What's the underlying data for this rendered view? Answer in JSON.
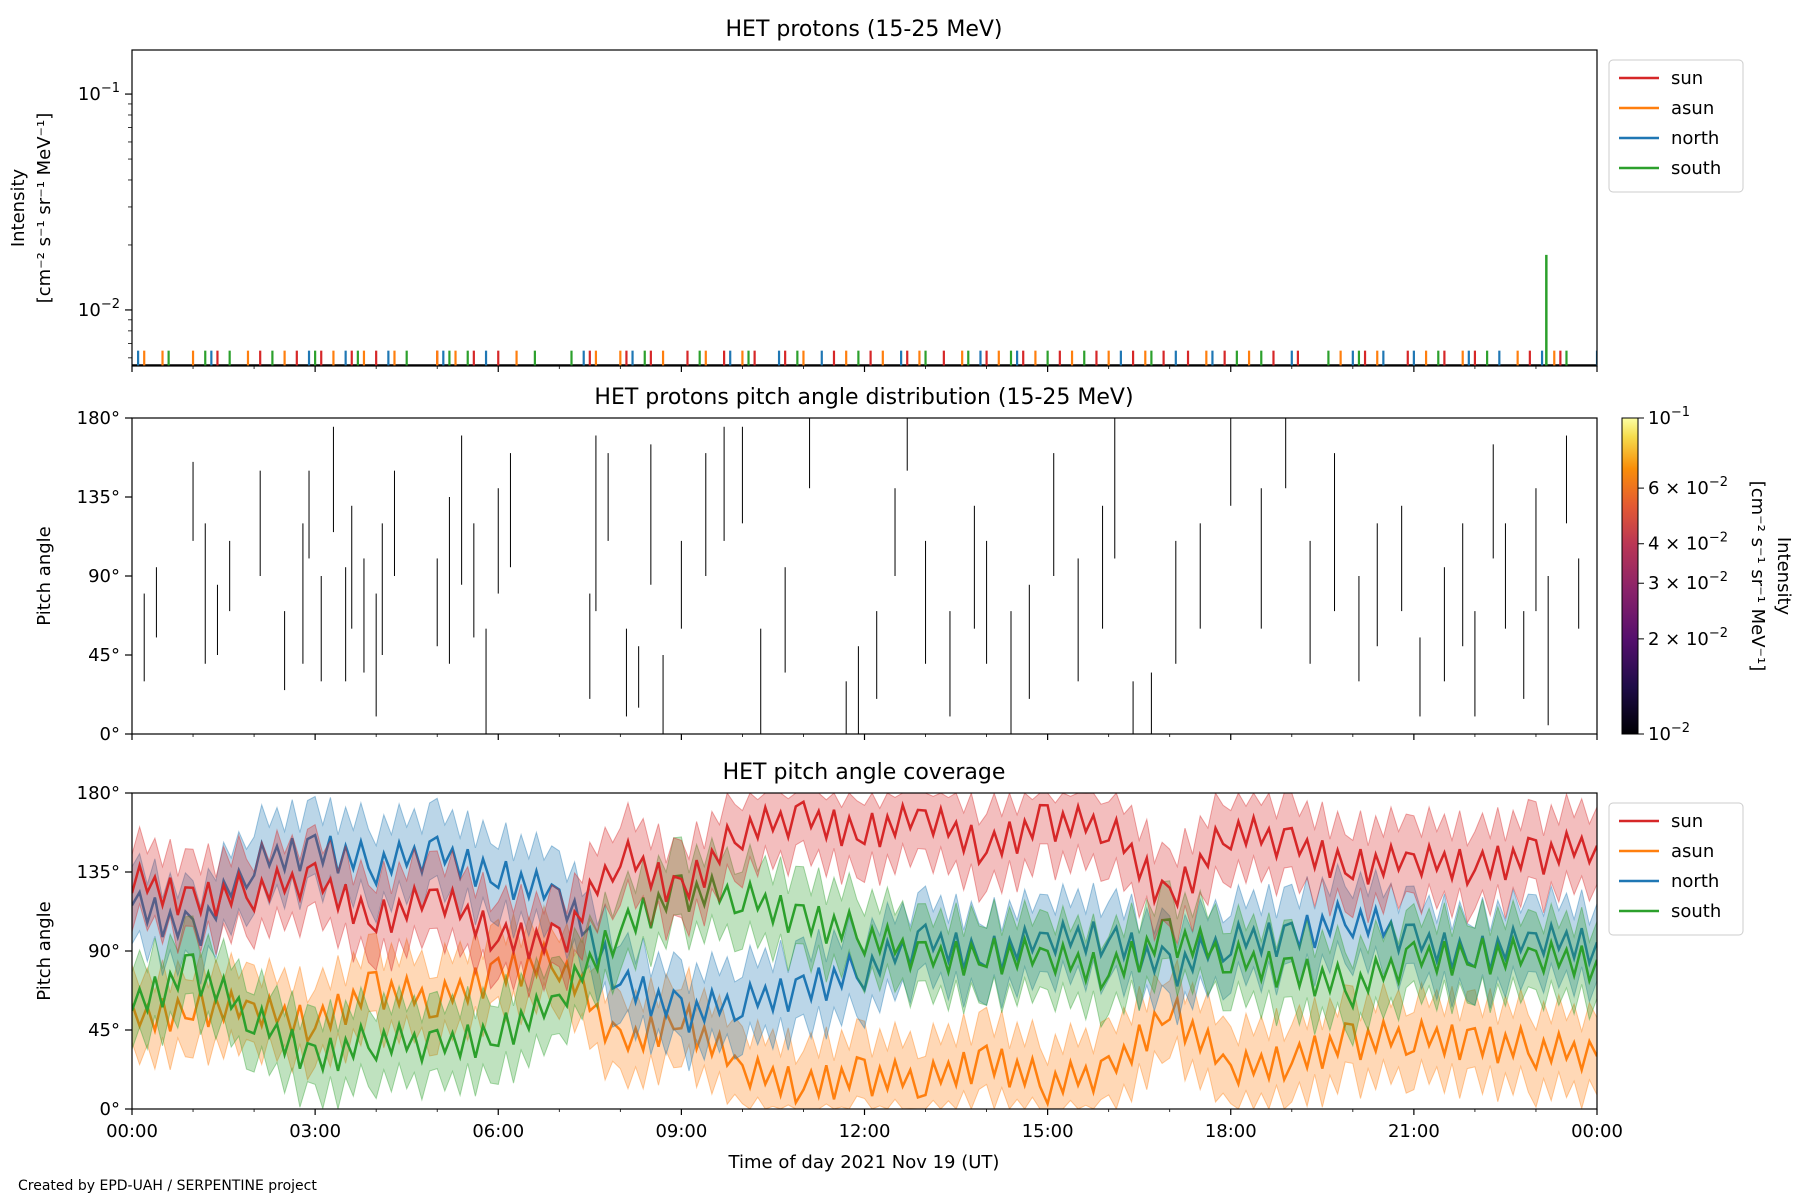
{
  "figure": {
    "footer": "Created by EPD-UAH / SERPENTINE project",
    "xlabel": "Time of day 2021 Nov 19 (UT)",
    "xticks": [
      "00:00",
      "03:00",
      "06:00",
      "09:00",
      "12:00",
      "15:00",
      "18:00",
      "21:00",
      "00:00"
    ]
  },
  "colors": {
    "sun": "#d62728",
    "asun": "#ff7f0e",
    "north": "#1f77b4",
    "south": "#2ca02c"
  },
  "chart_data": [
    {
      "type": "line",
      "title": "HET protons (15-25 MeV)",
      "ylabel_line1": "Intensity",
      "ylabel_line2": "[cm⁻² s⁻¹ sr⁻¹ MeV⁻¹]",
      "yscale": "log",
      "ylim": [
        0.0055,
        0.16
      ],
      "yticks": [
        {
          "value": 0.1,
          "base": "10",
          "exp": "−1"
        },
        {
          "value": 0.01,
          "base": "10",
          "exp": "−2"
        }
      ],
      "xlim_hours": [
        0,
        24
      ],
      "legend": [
        "sun",
        "asun",
        "north",
        "south"
      ],
      "legend_position": "upper right, outside",
      "baseline": 0.0055,
      "spike_height": 0.0057,
      "spikes": {
        "sun": [
          1.4,
          2.1,
          2.7,
          3.1,
          3.6,
          4.0,
          5.0,
          5.6,
          6.0,
          7.5,
          8.1,
          8.5,
          9.1,
          9.7,
          10.2,
          10.7,
          11.5,
          12.1,
          12.7,
          13.3,
          14.0,
          14.6,
          15.2,
          15.8,
          16.4,
          16.9,
          17.3,
          17.9,
          18.7,
          19.1,
          20.2,
          20.9,
          21.5,
          22.0,
          22.9,
          23.4
        ],
        "asun": [
          0.2,
          0.5,
          1.0,
          1.9,
          2.5,
          3.3,
          3.8,
          4.3,
          5.0,
          5.3,
          6.3,
          7.6,
          8.0,
          8.7,
          9.4,
          10.0,
          11.0,
          11.7,
          12.3,
          12.9,
          13.6,
          14.2,
          14.8,
          15.4,
          16.0,
          16.6,
          17.6,
          18.3,
          19.8,
          20.4,
          21.2,
          21.8,
          22.7,
          23.3
        ],
        "north": [
          0.1,
          1.3,
          2.9,
          3.5,
          4.2,
          5.1,
          5.8,
          7.4,
          8.2,
          9.8,
          10.6,
          11.3,
          12.6,
          13.9,
          14.5,
          16.2,
          17.1,
          17.7,
          19.0,
          20.0,
          20.5,
          21.0,
          21.9,
          22.4,
          23.1,
          24.0
        ],
        "south": [
          0.6,
          1.2,
          1.6,
          2.3,
          3.0,
          3.7,
          4.5,
          5.2,
          5.5,
          6.6,
          7.2,
          8.4,
          9.3,
          10.1,
          10.9,
          11.9,
          13.0,
          13.7,
          14.4,
          15.0,
          15.6,
          16.7,
          18.1,
          18.5,
          19.6,
          20.1,
          21.4,
          22.2,
          23.5
        ]
      },
      "peak": {
        "series": "south",
        "x_hours": 23.17,
        "y": 0.018
      }
    },
    {
      "type": "heatmap",
      "title": "HET protons pitch angle distribution (15-25 MeV)",
      "ylabel": "Pitch angle",
      "ylim": [
        0,
        180
      ],
      "yticks": [
        "0°",
        "45°",
        "90°",
        "135°",
        "180°"
      ],
      "colorbar": {
        "scale": "log",
        "range": [
          0.01,
          0.1
        ],
        "label_line1": "Intensity",
        "label_line2": "[cm⁻² s⁻¹ sr⁻¹ MeV⁻¹]",
        "ticks": [
          {
            "value": 0.1,
            "mant": "",
            "base": "10",
            "exp": "−1"
          },
          {
            "value": 0.06,
            "mant": "6 × ",
            "base": "10",
            "exp": "−2"
          },
          {
            "value": 0.04,
            "mant": "4 × ",
            "base": "10",
            "exp": "−2"
          },
          {
            "value": 0.03,
            "mant": "3 × ",
            "base": "10",
            "exp": "−2"
          },
          {
            "value": 0.02,
            "mant": "2 × ",
            "base": "10",
            "exp": "−2"
          },
          {
            "value": 0.01,
            "mant": "",
            "base": "10",
            "exp": "−2"
          }
        ]
      },
      "segments": [
        [
          0.2,
          30,
          80
        ],
        [
          0.4,
          55,
          95
        ],
        [
          1.0,
          110,
          155
        ],
        [
          1.2,
          40,
          120
        ],
        [
          1.4,
          45,
          85
        ],
        [
          1.6,
          70,
          110
        ],
        [
          2.1,
          90,
          150
        ],
        [
          2.5,
          25,
          70
        ],
        [
          2.8,
          40,
          120
        ],
        [
          2.9,
          100,
          150
        ],
        [
          3.1,
          30,
          90
        ],
        [
          3.3,
          115,
          175
        ],
        [
          3.5,
          30,
          95
        ],
        [
          3.6,
          60,
          130
        ],
        [
          3.8,
          35,
          100
        ],
        [
          4.0,
          10,
          80
        ],
        [
          4.1,
          45,
          120
        ],
        [
          4.3,
          90,
          150
        ],
        [
          5.0,
          50,
          100
        ],
        [
          5.2,
          40,
          135
        ],
        [
          5.4,
          85,
          170
        ],
        [
          5.6,
          55,
          120
        ],
        [
          5.8,
          0,
          60
        ],
        [
          6.0,
          80,
          140
        ],
        [
          6.2,
          95,
          160
        ],
        [
          7.5,
          20,
          80
        ],
        [
          7.6,
          70,
          170
        ],
        [
          7.8,
          110,
          160
        ],
        [
          8.1,
          10,
          60
        ],
        [
          8.3,
          15,
          50
        ],
        [
          8.5,
          85,
          165
        ],
        [
          8.7,
          0,
          45
        ],
        [
          9.0,
          60,
          110
        ],
        [
          9.4,
          90,
          160
        ],
        [
          9.7,
          110,
          175
        ],
        [
          10.0,
          120,
          175
        ],
        [
          10.3,
          0,
          60
        ],
        [
          10.7,
          35,
          95
        ],
        [
          11.1,
          140,
          180
        ],
        [
          11.7,
          0,
          30
        ],
        [
          11.9,
          0,
          50
        ],
        [
          12.2,
          20,
          70
        ],
        [
          12.5,
          90,
          140
        ],
        [
          12.7,
          150,
          180
        ],
        [
          13.0,
          40,
          110
        ],
        [
          13.4,
          10,
          70
        ],
        [
          13.8,
          60,
          130
        ],
        [
          14.0,
          40,
          110
        ],
        [
          14.4,
          0,
          70
        ],
        [
          14.7,
          20,
          85
        ],
        [
          15.1,
          90,
          160
        ],
        [
          15.5,
          30,
          100
        ],
        [
          15.9,
          60,
          130
        ],
        [
          16.1,
          100,
          180
        ],
        [
          16.4,
          0,
          30
        ],
        [
          16.7,
          0,
          35
        ],
        [
          17.1,
          40,
          110
        ],
        [
          17.5,
          60,
          120
        ],
        [
          18.0,
          130,
          180
        ],
        [
          18.5,
          60,
          140
        ],
        [
          18.9,
          140,
          180
        ],
        [
          19.3,
          40,
          110
        ],
        [
          19.7,
          70,
          160
        ],
        [
          20.1,
          30,
          90
        ],
        [
          20.4,
          50,
          120
        ],
        [
          20.8,
          70,
          130
        ],
        [
          21.1,
          10,
          55
        ],
        [
          21.5,
          30,
          95
        ],
        [
          21.8,
          50,
          120
        ],
        [
          22.0,
          10,
          70
        ],
        [
          22.3,
          100,
          165
        ],
        [
          22.5,
          60,
          120
        ],
        [
          22.8,
          20,
          70
        ],
        [
          23.0,
          70,
          140
        ],
        [
          23.2,
          5,
          90
        ],
        [
          23.5,
          120,
          170
        ],
        [
          23.7,
          60,
          100
        ]
      ]
    },
    {
      "type": "line",
      "title": "HET pitch angle coverage",
      "ylabel": "Pitch angle",
      "ylim": [
        0,
        180
      ],
      "yticks": [
        "0°",
        "45°",
        "90°",
        "135°",
        "180°"
      ],
      "legend": [
        "sun",
        "asun",
        "north",
        "south"
      ],
      "legend_position": "upper right, outside",
      "band_halfwidth_deg": 22,
      "x_hours": [
        0,
        1,
        2,
        3,
        4,
        5,
        6,
        7,
        8,
        9,
        10,
        11,
        12,
        13,
        14,
        15,
        16,
        17,
        18,
        19,
        20,
        21,
        22,
        23,
        24
      ],
      "series": [
        {
          "name": "sun",
          "values": [
            130,
            120,
            125,
            130,
            110,
            120,
            100,
            95,
            145,
            125,
            160,
            165,
            160,
            165,
            150,
            165,
            160,
            120,
            160,
            150,
            140,
            140,
            140,
            145,
            150
          ]
        },
        {
          "name": "asun",
          "values": [
            50,
            60,
            55,
            50,
            70,
            60,
            80,
            85,
            35,
            55,
            20,
            15,
            20,
            15,
            30,
            15,
            20,
            60,
            20,
            30,
            40,
            40,
            40,
            35,
            30
          ]
        },
        {
          "name": "north",
          "values": [
            120,
            100,
            140,
            150,
            140,
            145,
            135,
            120,
            75,
            55,
            60,
            70,
            80,
            95,
            90,
            95,
            100,
            80,
            95,
            100,
            110,
            95,
            90,
            95,
            95
          ]
        },
        {
          "name": "south",
          "values": [
            60,
            80,
            50,
            30,
            40,
            35,
            45,
            60,
            105,
            125,
            120,
            110,
            100,
            85,
            90,
            85,
            80,
            100,
            85,
            80,
            70,
            85,
            90,
            85,
            85
          ]
        }
      ]
    }
  ]
}
